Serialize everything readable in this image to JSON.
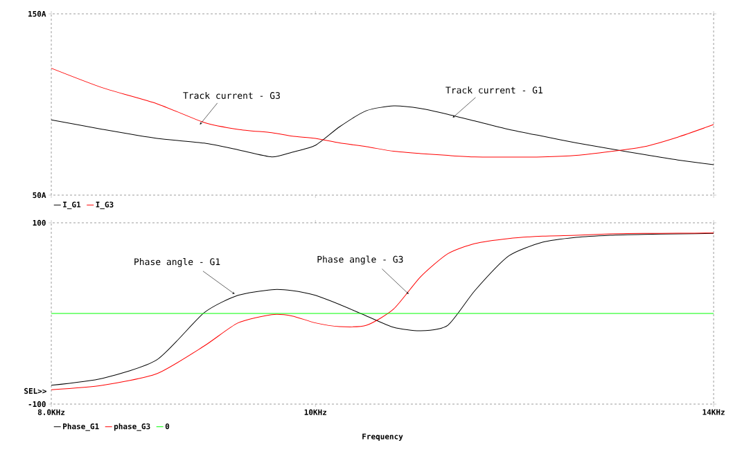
{
  "chart_data": [
    {
      "type": "line",
      "x": [
        8.0,
        8.355,
        8.747,
        9.103,
        9.367,
        9.638,
        9.806,
        10.0,
        10.206,
        10.442,
        10.683,
        10.93,
        11.184,
        11.442,
        11.774,
        12.115,
        12.466,
        12.827,
        13.199,
        13.582,
        14.0
      ],
      "series": [
        {
          "name": "I_G1",
          "color": "#000000",
          "values": [
            91.5,
            86.3,
            81.3,
            78.7,
            75.0,
            71.1,
            73.7,
            77.5,
            87.7,
            96.6,
            99.2,
            97.8,
            94.6,
            90.9,
            86.3,
            82.5,
            78.8,
            75.6,
            72.4,
            69.4,
            66.8
          ]
        },
        {
          "name": "I_G3",
          "color": "#ff0000",
          "values": [
            120.0,
            109.2,
            100.4,
            90.1,
            86.3,
            84.4,
            82.5,
            81.3,
            78.8,
            76.7,
            74.2,
            72.9,
            71.9,
            71.1,
            71.0,
            71.1,
            71.9,
            74.0,
            76.7,
            82.0,
            88.9
          ]
        }
      ],
      "log": "x",
      "xlim": [
        8,
        14
      ],
      "xticks": [
        {
          "value": 8,
          "label": null
        },
        {
          "value": 10,
          "label": null
        },
        {
          "value": 14,
          "label": null
        }
      ],
      "ylim": [
        50,
        150
      ],
      "yticks": [
        {
          "value": 50,
          "label": "50A"
        },
        {
          "value": 150,
          "label": "150A"
        }
      ],
      "tick_labels": "y",
      "legend": "bottom left",
      "grid": false,
      "annotations": [
        {
          "text": "Track current - G3",
          "x": 9.07,
          "y": 88.9
        },
        {
          "text": "Track current - G1",
          "x": 11.23,
          "y": 92.7
        }
      ]
    },
    {
      "type": "line",
      "x": [
        8.0,
        8.355,
        8.747,
        9.103,
        9.367,
        9.638,
        9.806,
        10.0,
        10.206,
        10.442,
        10.683,
        10.93,
        11.184,
        11.442,
        11.774,
        12.115,
        12.466,
        12.827,
        13.199,
        13.582,
        14.0
      ],
      "series": [
        {
          "name": "Phase_G1",
          "color": "#000000",
          "values": [
            -79.2,
            -71.5,
            -51.1,
            0.8,
            20.0,
            26.2,
            25.2,
            20.0,
            9.9,
            -2.8,
            -15.3,
            -19.1,
            -13.0,
            25.2,
            63.4,
            78.6,
            84.0,
            86.3,
            87.3,
            87.8,
            88.3
          ]
        },
        {
          "name": "phase_G3",
          "color": "#ff0000",
          "values": [
            -84.2,
            -79.2,
            -66.4,
            -35.9,
            -10.4,
            -1.3,
            -2.8,
            -10.4,
            -14.5,
            -13.0,
            4.8,
            40.5,
            65.9,
            77.1,
            82.7,
            85.3,
            86.3,
            87.8,
            88.3,
            88.5,
            88.8
          ]
        },
        {
          "name": "0",
          "color": "#00ff00",
          "x": [
            8,
            14
          ],
          "values": [
            0,
            0
          ]
        }
      ],
      "log": "x",
      "xlim": [
        8,
        14
      ],
      "xticks": [
        {
          "value": 8,
          "label": "8.0KHz"
        },
        {
          "value": 10,
          "label": "10KHz"
        },
        {
          "value": 14,
          "label": "14KHz"
        }
      ],
      "ylim": [
        -100,
        100
      ],
      "yticks": [
        -100,
        100
      ],
      "xlabel": "Frequency",
      "legend": "bottom left",
      "grid": false,
      "annotations": [
        {
          "text": "Phase angle - G1",
          "x": 9.34,
          "y": 21.4
        },
        {
          "text": "Phase angle - G3",
          "x": 10.82,
          "y": 21.4
        },
        "SEL>>"
      ]
    }
  ]
}
